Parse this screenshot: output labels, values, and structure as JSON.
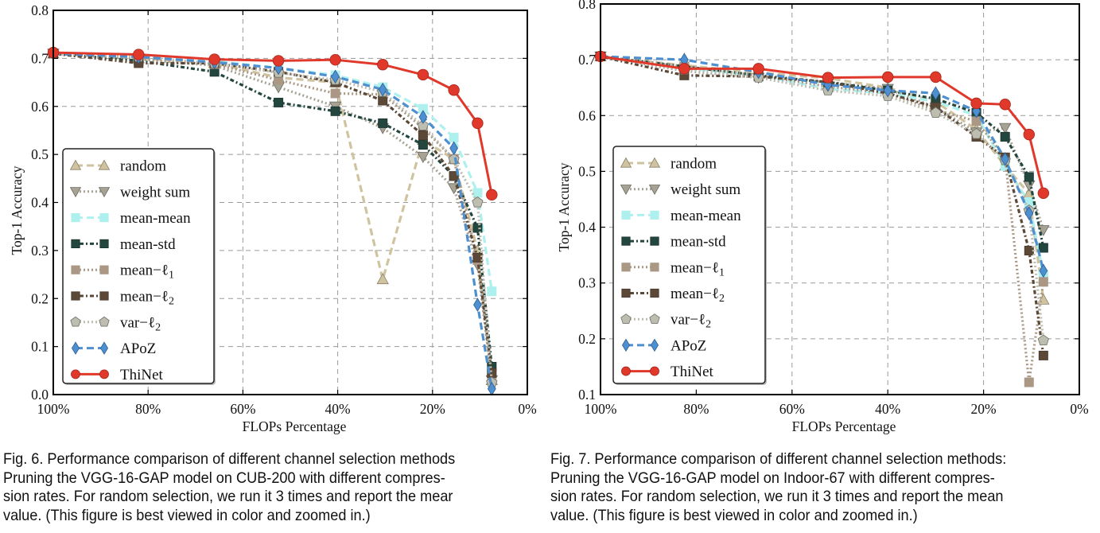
{
  "chart_data": [
    {
      "type": "line",
      "title": "",
      "xlabel": "FLOPs Percentage",
      "ylabel": "Top-1 Accuracy",
      "xlim": [
        100,
        0
      ],
      "ylim": [
        0.0,
        0.8
      ],
      "xticks": [
        "100%",
        "80%",
        "60%",
        "40%",
        "20%",
        "0%"
      ],
      "xtick_values": [
        100,
        80,
        60,
        40,
        20,
        0
      ],
      "yticks": [
        "0.0",
        "0.1",
        "0.2",
        "0.3",
        "0.4",
        "0.5",
        "0.6",
        "0.7",
        "0.8"
      ],
      "ytick_values": [
        0.0,
        0.1,
        0.2,
        0.3,
        0.4,
        0.5,
        0.6,
        0.7,
        0.8
      ],
      "grid": true,
      "legend_position": "lower-left",
      "x": [
        100,
        82,
        66,
        52.5,
        40.5,
        30.5,
        22,
        15.5,
        10.5,
        7.5
      ],
      "series": [
        {
          "name": "random",
          "label": "random",
          "values": [
            0.71,
            0.7,
            0.69,
            0.66,
            0.65,
            0.24,
            0.53,
            0.49,
            0.3,
            0.03
          ]
        },
        {
          "name": "weight sum",
          "label": "weight sum",
          "values": [
            0.71,
            0.698,
            0.685,
            0.64,
            0.6,
            0.555,
            0.495,
            0.43,
            0.27,
            0.03
          ]
        },
        {
          "name": "mean-mean",
          "label": "mean-mean",
          "values": [
            0.71,
            0.705,
            0.694,
            0.68,
            0.665,
            0.64,
            0.595,
            0.535,
            0.42,
            0.215
          ]
        },
        {
          "name": "mean-std",
          "label": "mean-std",
          "values": [
            0.71,
            0.695,
            0.672,
            0.608,
            0.59,
            0.565,
            0.52,
            0.455,
            0.347,
            0.058
          ]
        },
        {
          "name": "mean-l1",
          "label": "mean−ℓ",
          "sub": "1",
          "values": [
            0.71,
            0.7,
            0.688,
            0.655,
            0.627,
            0.625,
            0.555,
            0.49,
            0.28,
            0.035
          ]
        },
        {
          "name": "mean-l2",
          "label": "mean−ℓ",
          "sub": "2",
          "values": [
            0.71,
            0.69,
            0.69,
            0.672,
            0.65,
            0.612,
            0.54,
            0.455,
            0.285,
            0.045
          ]
        },
        {
          "name": "var-l2",
          "label": "var−ℓ",
          "sub": "2",
          "values": [
            0.71,
            0.703,
            0.69,
            0.67,
            0.655,
            0.63,
            0.56,
            0.49,
            0.4,
            0.025
          ]
        },
        {
          "name": "APoZ",
          "label": "APoZ",
          "values": [
            0.71,
            0.703,
            0.692,
            0.68,
            0.662,
            0.635,
            0.578,
            0.513,
            0.187,
            0.012
          ]
        },
        {
          "name": "ThiNet",
          "label": "ThiNet",
          "values": [
            0.712,
            0.708,
            0.698,
            0.695,
            0.697,
            0.687,
            0.666,
            0.634,
            0.565,
            0.416
          ]
        }
      ]
    },
    {
      "type": "line",
      "title": "",
      "xlabel": "FLOPs Percentage",
      "ylabel": "Top-1 Accuracy",
      "xlim": [
        100,
        0
      ],
      "ylim": [
        0.1,
        0.8
      ],
      "xticks": [
        "100%",
        "80%",
        "60%",
        "40%",
        "20%",
        "0%"
      ],
      "xtick_values": [
        100,
        80,
        60,
        40,
        20,
        0
      ],
      "yticks": [
        "0.1",
        "0.2",
        "0.3",
        "0.4",
        "0.5",
        "0.6",
        "0.7",
        "0.8"
      ],
      "ytick_values": [
        0.1,
        0.2,
        0.3,
        0.4,
        0.5,
        0.6,
        0.7,
        0.8
      ],
      "grid": true,
      "legend_position": "lower-left",
      "x": [
        100,
        82.5,
        67,
        52.5,
        40,
        30,
        21.5,
        15.5,
        10.5,
        7.5
      ],
      "series": [
        {
          "name": "random",
          "label": "random",
          "values": [
            0.706,
            0.69,
            0.677,
            0.667,
            0.65,
            0.625,
            0.575,
            0.51,
            0.46,
            0.27
          ]
        },
        {
          "name": "weight sum",
          "label": "weight sum",
          "values": [
            0.706,
            0.68,
            0.668,
            0.66,
            0.648,
            0.615,
            0.57,
            0.578,
            0.475,
            0.395
          ]
        },
        {
          "name": "mean-mean",
          "label": "mean-mean",
          "values": [
            0.706,
            0.685,
            0.672,
            0.648,
            0.64,
            0.625,
            0.6,
            0.51,
            0.445,
            0.315
          ]
        },
        {
          "name": "mean-std",
          "label": "mean-std",
          "values": [
            0.706,
            0.688,
            0.672,
            0.66,
            0.645,
            0.63,
            0.605,
            0.562,
            0.49,
            0.363
          ]
        },
        {
          "name": "mean-l1",
          "label": "mean−ℓ",
          "sub": "1",
          "values": [
            0.706,
            0.688,
            0.672,
            0.652,
            0.64,
            0.61,
            0.59,
            0.525,
            0.122,
            0.302
          ]
        },
        {
          "name": "mean-l2",
          "label": "mean−ℓ",
          "sub": "2",
          "values": [
            0.706,
            0.672,
            0.67,
            0.66,
            0.64,
            0.615,
            0.562,
            0.525,
            0.358,
            0.17
          ]
        },
        {
          "name": "var-l2",
          "label": "var−ℓ",
          "sub": "2",
          "values": [
            0.706,
            0.682,
            0.668,
            0.645,
            0.635,
            0.605,
            0.567,
            0.52,
            0.43,
            0.197
          ]
        },
        {
          "name": "APoZ",
          "label": "APoZ",
          "values": [
            0.706,
            0.7,
            0.678,
            0.655,
            0.645,
            0.64,
            0.608,
            0.522,
            0.425,
            0.322
          ]
        },
        {
          "name": "ThiNet",
          "label": "ThiNet",
          "values": [
            0.706,
            0.684,
            0.684,
            0.668,
            0.669,
            0.669,
            0.622,
            0.62,
            0.566,
            0.461
          ]
        }
      ]
    }
  ],
  "styles": {
    "random": {
      "color": "#cfc3a0",
      "edge": "#8a8068",
      "marker": "triangle-up",
      "dash": "dashed"
    },
    "weight sum": {
      "color": "#a6a394",
      "edge": "#6c6a60",
      "marker": "triangle-down",
      "dash": "dotted"
    },
    "mean-mean": {
      "color": "#aef0ee",
      "edge": "#aef0ee",
      "marker": "square",
      "dash": "dashed"
    },
    "mean-std": {
      "color": "#23473f",
      "edge": "#1a342e",
      "marker": "square",
      "dash": "dashdot"
    },
    "mean-l1": {
      "color": "#aa9885",
      "edge": "#aa9885",
      "marker": "square",
      "dash": "dotted"
    },
    "mean-l2": {
      "color": "#5c4837",
      "edge": "#4a3a2c",
      "marker": "square",
      "dash": "dashdot"
    },
    "var-l2": {
      "color": "#bdbdb0",
      "edge": "#6f6f66",
      "marker": "pentagon",
      "dash": "dotted"
    },
    "APoZ": {
      "color": "#4e8fcf",
      "edge": "#2d5f94",
      "marker": "diamond",
      "dash": "dashed"
    },
    "ThiNet": {
      "color": "#e0392b",
      "edge": "#a8271d",
      "marker": "circle",
      "dash": "solid"
    }
  },
  "captions": {
    "fig6": [
      "Fig. 6. Performance comparison of different channel selection methods",
      "Pruning the VGG-16-GAP model on CUB-200 with different compres-",
      "sion rates. For random selection, we run it 3 times and report the mear",
      "value. (This figure is best viewed in color and zoomed in.)"
    ],
    "fig7": [
      "Fig. 7. Performance comparison of different channel selection methods:",
      "Pruning the VGG-16-GAP model on Indoor-67 with different compres-",
      "sion rates. For random selection, we run it 3 times and report the mean",
      "value. (This figure is best viewed in color and zoomed in.)"
    ]
  }
}
